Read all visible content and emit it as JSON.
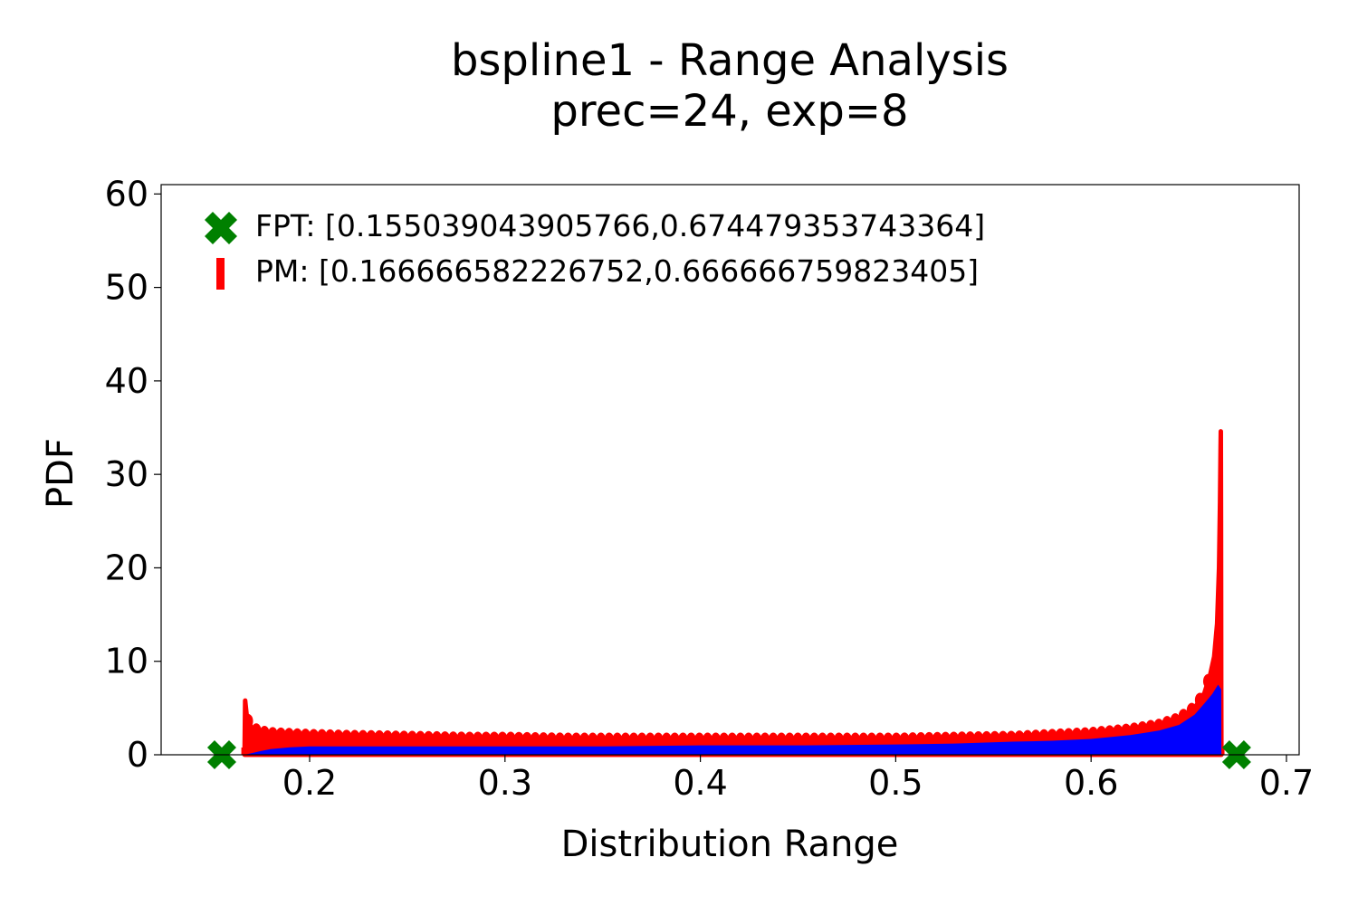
{
  "chart_data": {
    "type": "area",
    "title": "bspline1 - Range Analysis",
    "subtitle": "prec=24, exp=8",
    "xlabel": "Distribution Range",
    "ylabel": "PDF",
    "xlim": [
      0.124,
      0.7065
    ],
    "ylim": [
      0,
      61
    ],
    "xticks": [
      0.2,
      0.3,
      0.4,
      0.5,
      0.6,
      0.7
    ],
    "xtick_labels": [
      "0.2",
      "0.3",
      "0.4",
      "0.5",
      "0.6",
      "0.7"
    ],
    "yticks": [
      0,
      10,
      20,
      30,
      40,
      50,
      60
    ],
    "ytick_labels": [
      "0",
      "10",
      "20",
      "30",
      "40",
      "50",
      "60"
    ],
    "grid": false,
    "legend_position": "top-left",
    "fpt": {
      "label": "FPT: [0.155039043905766,0.674479353743364]",
      "x": [
        0.155039043905766,
        0.674479353743364
      ],
      "y": [
        0,
        0
      ],
      "color": "#008000",
      "marker": "X"
    },
    "pm": {
      "label": "PM: [0.166666582226752,0.666666759823405]",
      "x": [
        0.166666582226752,
        0.666666759823405
      ],
      "color": "#ff0000",
      "marker": "vertical-bar",
      "points": [
        [
          0.1667,
          0.0
        ],
        [
          0.167,
          5.8
        ],
        [
          0.168,
          3.8
        ],
        [
          0.17,
          3.0
        ],
        [
          0.1725,
          2.6
        ],
        [
          0.175,
          2.4
        ],
        [
          0.18,
          2.2
        ],
        [
          0.19,
          2.1
        ],
        [
          0.2,
          2.0
        ],
        [
          0.22,
          1.9
        ],
        [
          0.25,
          1.8
        ],
        [
          0.28,
          1.7
        ],
        [
          0.3,
          1.7
        ],
        [
          0.33,
          1.6
        ],
        [
          0.36,
          1.6
        ],
        [
          0.4,
          1.6
        ],
        [
          0.43,
          1.6
        ],
        [
          0.46,
          1.6
        ],
        [
          0.5,
          1.6
        ],
        [
          0.53,
          1.7
        ],
        [
          0.56,
          1.8
        ],
        [
          0.58,
          2.0
        ],
        [
          0.6,
          2.2
        ],
        [
          0.62,
          2.6
        ],
        [
          0.635,
          3.1
        ],
        [
          0.645,
          3.8
        ],
        [
          0.653,
          5.0
        ],
        [
          0.658,
          6.6
        ],
        [
          0.661,
          8.6
        ],
        [
          0.663,
          10.5
        ],
        [
          0.6645,
          14.0
        ],
        [
          0.6655,
          20.0
        ],
        [
          0.666,
          27.0
        ],
        [
          0.6663,
          33.0
        ],
        [
          0.6664,
          34.6
        ],
        [
          0.6665,
          25.0
        ],
        [
          0.6666,
          8.0
        ],
        [
          0.6667,
          0.0
        ]
      ]
    },
    "distribution": {
      "color": "#0000ff",
      "points": [
        [
          0.1667,
          0.0
        ],
        [
          0.175,
          0.4
        ],
        [
          0.18,
          0.6
        ],
        [
          0.19,
          0.8
        ],
        [
          0.2,
          0.9
        ],
        [
          0.25,
          0.9
        ],
        [
          0.3,
          0.9
        ],
        [
          0.35,
          0.9
        ],
        [
          0.4,
          1.0
        ],
        [
          0.45,
          1.0
        ],
        [
          0.5,
          1.1
        ],
        [
          0.53,
          1.2
        ],
        [
          0.56,
          1.4
        ],
        [
          0.58,
          1.5
        ],
        [
          0.6,
          1.7
        ],
        [
          0.62,
          2.1
        ],
        [
          0.635,
          2.6
        ],
        [
          0.645,
          3.2
        ],
        [
          0.653,
          4.3
        ],
        [
          0.658,
          5.5
        ],
        [
          0.662,
          6.5
        ],
        [
          0.665,
          7.5
        ],
        [
          0.6666,
          7.0
        ],
        [
          0.6667,
          0.0
        ]
      ]
    }
  }
}
